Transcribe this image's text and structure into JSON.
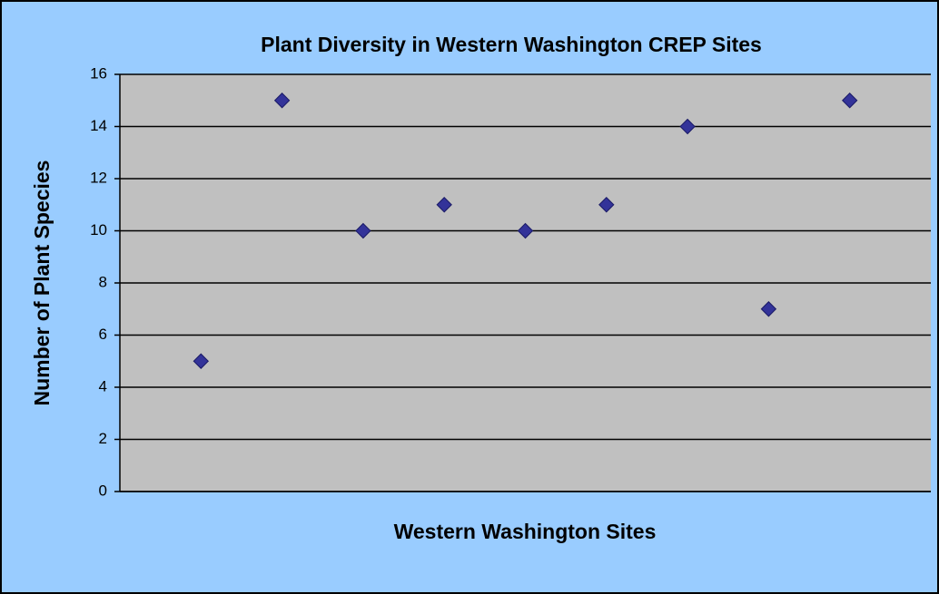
{
  "chart_data": {
    "type": "scatter",
    "title": "Plant Diversity in Western Washington CREP Sites",
    "xlabel": "Western Washington Sites",
    "ylabel": "Number of Plant Species",
    "categories": [
      null,
      null,
      null,
      null,
      null,
      null,
      null,
      null,
      null
    ],
    "values": [
      5,
      15,
      10,
      11,
      10,
      11,
      14,
      7,
      15
    ],
    "color": "#333399",
    "ylim": [
      0,
      16
    ],
    "yticks": [
      0,
      2,
      4,
      6,
      8,
      10,
      12,
      14,
      16
    ],
    "grid": true
  }
}
